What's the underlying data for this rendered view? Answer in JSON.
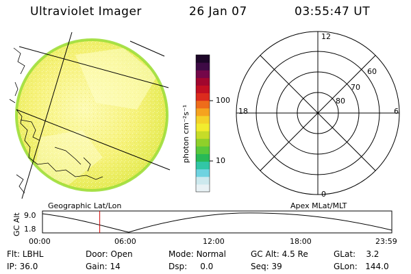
{
  "header": {
    "title": "Ultraviolet Imager",
    "date": "26 Jan 07",
    "time": "03:55:47 UT"
  },
  "left_panel": {
    "label": "Geographic Lat/Lon"
  },
  "colorbar": {
    "unit_label": "photon cm⁻²s⁻¹",
    "ticks": [
      "100",
      "10"
    ],
    "colors": [
      "#e9f2f5",
      "#cde9ee",
      "#6fd3e0",
      "#32c6a6",
      "#28b956",
      "#58c83b",
      "#8fd02a",
      "#c6dc28",
      "#f2ec2e",
      "#f4d229",
      "#f5a31f",
      "#ee6c1b",
      "#dc2b1d",
      "#c20f22",
      "#a1062e",
      "#740749",
      "#3e0a45",
      "#1d0628"
    ]
  },
  "polar_plot": {
    "label": "Apex MLat/MLT",
    "mlt_labels": {
      "top": "12",
      "bottom": "0",
      "left": "18",
      "right": "6"
    },
    "lat_labels": [
      "60",
      "70",
      "80"
    ]
  },
  "altitude_strip": {
    "axis_label": "GC Alt",
    "y_ticks": [
      "9.0",
      "1.8"
    ],
    "x_ticks": [
      "00:00",
      "06:00",
      "12:00",
      "18:00",
      "23:59"
    ],
    "current_marker_time": "03:55:47",
    "marker_color": "#d00000"
  },
  "footer": {
    "row1": [
      {
        "label": "Flt:",
        "value": "LBHL"
      },
      {
        "label": "Door:",
        "value": "Open"
      },
      {
        "label": "Mode:",
        "value": "Normal"
      },
      {
        "label": "GC Alt:",
        "value": "4.5 Re"
      },
      {
        "label": "GLat:",
        "value": "3.2"
      }
    ],
    "row2": [
      {
        "label": "IP:",
        "value": "36.0"
      },
      {
        "label": "Gain:",
        "value": "14"
      },
      {
        "label": "Dsp:",
        "value": "0.0"
      },
      {
        "label": "Seq:",
        "value": "39"
      },
      {
        "label": "GLon:",
        "value": "144.0"
      }
    ]
  }
}
